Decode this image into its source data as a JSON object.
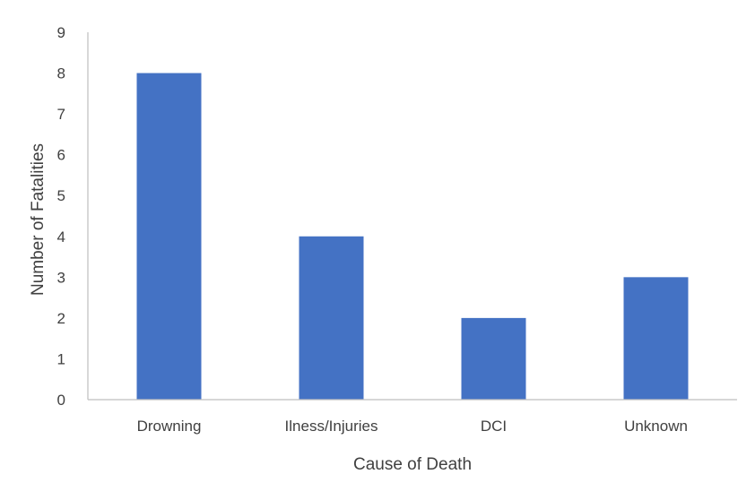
{
  "chart_data": {
    "type": "bar",
    "title": "",
    "xlabel": "Cause of Death",
    "ylabel": "Number of Fatalities",
    "categories": [
      "Drowning",
      "Ilness/Injuries",
      "DCI",
      "Unknown"
    ],
    "values": [
      8,
      4,
      2,
      3
    ],
    "ylim": [
      0,
      9
    ],
    "yticks": [
      "0",
      "1",
      "2",
      "3",
      "4",
      "5",
      "6",
      "7",
      "8",
      "9"
    ],
    "grid": false,
    "legend": "none",
    "bar_color": "#4472C4",
    "axis_color": "#BFBFBF",
    "text_color": "#404040"
  }
}
